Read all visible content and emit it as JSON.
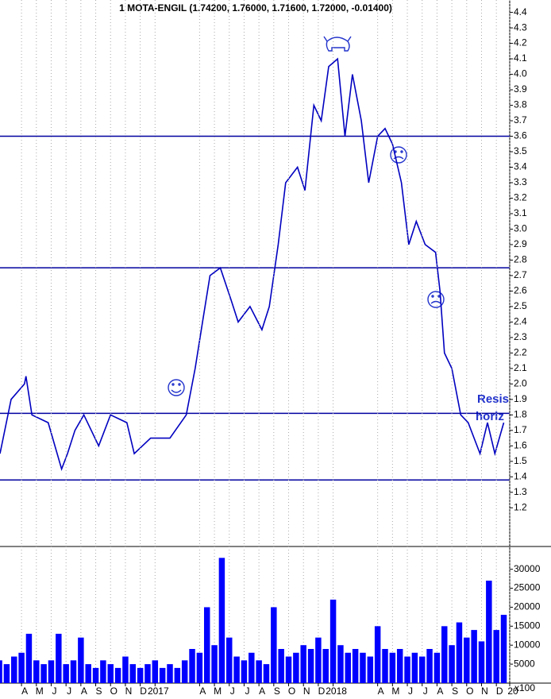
{
  "chart_data": [
    {
      "type": "line",
      "title": "1 MOTA-ENGIL (1.74200, 1.76000, 1.71600, 1.72000, -0.01400)",
      "x": [
        1.55,
        2.3,
        3.2,
        3.3,
        3.7,
        4.8,
        5.7,
        6.1,
        6.6,
        7.2,
        8.2,
        9.0,
        10.1,
        10.6,
        11.7,
        13.0,
        14.1,
        14.7,
        15.2,
        15.7,
        16.4,
        17.1,
        17.6,
        18.4,
        19.2,
        19.7,
        20.3,
        20.8,
        21.6,
        22.1,
        22.7,
        23.2,
        23.7,
        24.3,
        24.8,
        25.3,
        25.9,
        26.4,
        27.0,
        27.5,
        28.0,
        28.6,
        29.1,
        29.6,
        30.2,
        30.9,
        31.2,
        31.5,
        32.0,
        32.6,
        33.1,
        33.9,
        34.4,
        34.9,
        35.5
      ],
      "values": [
        1.55,
        1.9,
        2.0,
        2.05,
        1.8,
        1.75,
        1.45,
        1.55,
        1.7,
        1.8,
        1.6,
        1.8,
        1.75,
        1.55,
        1.65,
        1.65,
        1.8,
        2.1,
        2.4,
        2.7,
        2.75,
        2.55,
        2.4,
        2.5,
        2.35,
        2.5,
        2.9,
        3.3,
        3.4,
        3.25,
        3.8,
        3.7,
        4.05,
        4.1,
        3.6,
        4.0,
        3.7,
        3.3,
        3.6,
        3.65,
        3.55,
        3.3,
        2.9,
        3.05,
        2.9,
        2.85,
        2.6,
        2.2,
        2.1,
        1.8,
        1.75,
        1.55,
        1.75,
        1.55,
        1.75
      ],
      "color": "#0000c0",
      "xlim": [
        1.55,
        35.9
      ],
      "ylim": [
        0.95,
        4.48
      ],
      "yticks": [
        1.2,
        1.3,
        1.4,
        1.5,
        1.6,
        1.7,
        1.8,
        1.9,
        {
          "value": 2,
          "label": "2.0"
        },
        2.1,
        2.2,
        2.3,
        2.4,
        2.5,
        2.6,
        2.7,
        2.8,
        2.9,
        {
          "value": 3,
          "label": "3.0"
        },
        3.1,
        3.2,
        3.3,
        3.4,
        3.5,
        3.6,
        3.7,
        3.8,
        3.9,
        {
          "value": 4,
          "label": "4.0"
        },
        4.1,
        4.2,
        4.3,
        4.4
      ],
      "hlines": [
        3.6,
        2.75,
        1.81,
        1.38
      ],
      "hline_color": "#0000a0",
      "annotations": [
        "Resis",
        "horiz"
      ],
      "grid": true
    },
    {
      "type": "bar",
      "x": [
        1.5,
        2,
        2.5,
        3,
        3.5,
        4,
        4.5,
        5,
        5.5,
        6,
        6.5,
        7,
        7.5,
        8,
        8.5,
        9,
        9.5,
        10,
        10.5,
        11,
        11.5,
        12,
        12.5,
        13,
        13.5,
        14,
        14.5,
        15,
        15.5,
        16,
        16.5,
        17,
        17.5,
        18,
        18.5,
        19,
        19.5,
        20,
        20.5,
        21,
        21.5,
        22,
        22.5,
        23,
        23.5,
        24,
        24.5,
        25,
        25.5,
        26,
        26.5,
        27,
        27.5,
        28,
        28.5,
        29,
        29.5,
        30,
        30.5,
        31,
        31.5,
        32,
        32.5,
        33,
        33.5,
        34,
        34.5,
        35,
        35.5
      ],
      "values": [
        6000,
        5000,
        7000,
        8000,
        13000,
        6000,
        5000,
        6000,
        13000,
        5000,
        6000,
        12000,
        5000,
        4000,
        6000,
        5000,
        4000,
        7000,
        5000,
        4000,
        5000,
        6000,
        4000,
        5000,
        4000,
        6000,
        9000,
        8000,
        20000,
        10000,
        33000,
        12000,
        7000,
        6000,
        8000,
        6000,
        5000,
        20000,
        9000,
        7000,
        8000,
        10000,
        9000,
        12000,
        9000,
        22000,
        10000,
        8000,
        9000,
        8000,
        7000,
        15000,
        9000,
        8000,
        9000,
        7000,
        8000,
        7000,
        9000,
        8000,
        15000,
        10000,
        16000,
        12000,
        14000,
        11000,
        27000,
        14000,
        18000
      ],
      "color": "#0000ff",
      "volume_unit": "x100",
      "xlim": [
        1.55,
        35.9
      ],
      "ylim": [
        0,
        36000
      ],
      "yticks": [
        5000,
        10000,
        15000,
        20000,
        25000,
        30000
      ],
      "xticks": [
        {
          "value": 3,
          "label": "A"
        },
        {
          "value": 4,
          "label": "M"
        },
        {
          "value": 5,
          "label": "J"
        },
        {
          "value": 6,
          "label": "J"
        },
        {
          "value": 7,
          "label": "A"
        },
        {
          "value": 8,
          "label": "S"
        },
        {
          "value": 9,
          "label": "O"
        },
        {
          "value": 10,
          "label": "N"
        },
        {
          "value": 11,
          "label": "D"
        },
        {
          "value": 12,
          "label": "2017"
        },
        {
          "value": 15,
          "label": "A"
        },
        {
          "value": 16,
          "label": "M"
        },
        {
          "value": 17,
          "label": "J"
        },
        {
          "value": 18,
          "label": "J"
        },
        {
          "value": 19,
          "label": "A"
        },
        {
          "value": 20,
          "label": "S"
        },
        {
          "value": 21,
          "label": "O"
        },
        {
          "value": 22,
          "label": "N"
        },
        {
          "value": 23,
          "label": "D"
        },
        {
          "value": 24,
          "label": "2018"
        },
        {
          "value": 27,
          "label": "A"
        },
        {
          "value": 28,
          "label": "M"
        },
        {
          "value": 29,
          "label": "J"
        },
        {
          "value": 30,
          "label": "J"
        },
        {
          "value": 31,
          "label": "A"
        },
        {
          "value": 32,
          "label": "S"
        },
        {
          "value": 33,
          "label": "O"
        },
        {
          "value": 34,
          "label": "N"
        },
        {
          "value": 35,
          "label": "D"
        },
        {
          "value": 35.9,
          "label": "20"
        }
      ]
    }
  ]
}
